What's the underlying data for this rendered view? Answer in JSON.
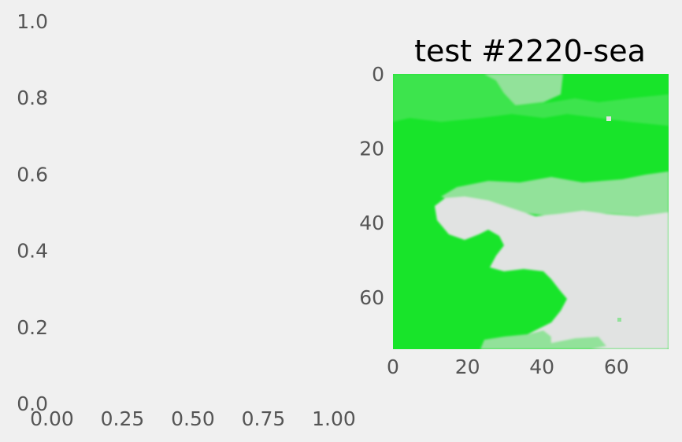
{
  "chart_data": [
    {
      "type": "line",
      "title": "",
      "xlabel": "",
      "ylabel": "",
      "xlim": [
        0,
        1
      ],
      "ylim": [
        0,
        1
      ],
      "x_ticks": [
        "0.00",
        "0.25",
        "0.50",
        "0.75",
        "1.00"
      ],
      "y_ticks": [
        "0.0",
        "0.2",
        "0.4",
        "0.6",
        "0.8",
        "1.0"
      ],
      "series": [],
      "grid": false
    },
    {
      "type": "heatmap",
      "title": "test #2220-sea",
      "xlabel": "",
      "ylabel": "",
      "xlim": [
        0,
        74
      ],
      "ylim": [
        74,
        0
      ],
      "x_ticks": [
        "0",
        "20",
        "40",
        "60"
      ],
      "y_ticks": [
        "0",
        "20",
        "40",
        "60"
      ],
      "grid": false,
      "color_scale": {
        "sea_dark": "#18e42a",
        "sea_mid": "#3ee44e",
        "sea_light": "#92e29a",
        "land": "#e1e3e2"
      },
      "regions": [
        {
          "name": "land",
          "description": "pale grey area on the lower right"
        },
        {
          "name": "sea",
          "description": "green area on the left and top"
        }
      ]
    }
  ]
}
